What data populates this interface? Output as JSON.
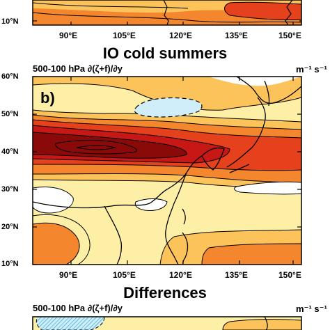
{
  "top_panel": {
    "lat_labels": [
      "10°N"
    ],
    "lon_labels": [
      "90°E",
      "105°E",
      "120°E",
      "135°E",
      "150°E"
    ]
  },
  "middle_panel": {
    "title": "IO cold summers",
    "subtitle": "500-100 hPa ∂(ζ+f)/∂y",
    "units": "m⁻¹ s⁻¹",
    "panel_label": "b)",
    "lat_labels": [
      "60°N",
      "50°N",
      "40°N",
      "30°N",
      "20°N",
      "10°N"
    ],
    "lon_labels": [
      "90°E",
      "105°E",
      "120°E",
      "135°E",
      "150°E"
    ]
  },
  "bottom_panel": {
    "title": "Differences",
    "subtitle": "500-100 hPa ∂(ζ+f)/∂y",
    "units": "m⁻¹ s⁻¹"
  },
  "colors": {
    "light_yellow": "#fdf0a6",
    "yellow_orange": "#fbc35a",
    "orange": "#f4862e",
    "red_orange": "#e4411c",
    "red": "#c81816",
    "dark_red": "#8a0a0a",
    "light_blue": "#cfeefa",
    "cyan_hatch": "#3fa9d6"
  }
}
